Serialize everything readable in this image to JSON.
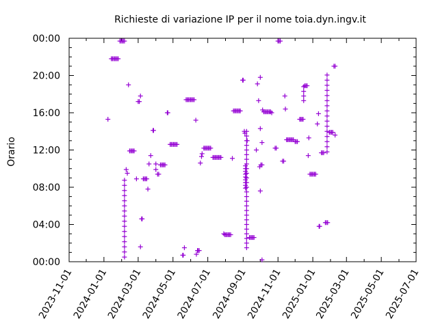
{
  "chart_data": {
    "type": "scatter",
    "title": "Richieste di variazione IP per il nome toia.dyn.ingv.it",
    "ylabel": "Orario",
    "xlabel": "",
    "x_ticks": [
      "2023-11-01",
      "2024-01-01",
      "2024-03-01",
      "2024-05-01",
      "2024-07-01",
      "2024-09-01",
      "2024-11-01",
      "2025-01-01",
      "2025-03-01",
      "2025-05-01",
      "2025-07-01"
    ],
    "y_ticks": [
      "00:00",
      "04:00",
      "08:00",
      "12:00",
      "16:00",
      "20:00",
      "00:00"
    ],
    "xlim": [
      "2023-11-01",
      "2025-07-01"
    ],
    "ylim": [
      0,
      24
    ],
    "grid": false,
    "marker": "plus",
    "color": "#9400d3",
    "series": [
      {
        "points": [
          [
            "2024-01-08",
            15.3
          ],
          [
            "2024-01-14",
            21.8
          ],
          [
            "2024-01-16",
            21.8
          ],
          [
            "2024-01-18",
            21.8
          ],
          [
            "2024-01-20",
            21.8
          ],
          [
            "2024-01-22",
            21.8
          ],
          [
            "2024-01-24",
            21.8
          ],
          [
            "2024-01-26",
            21.8
          ],
          [
            "2024-01-29",
            23.7
          ],
          [
            "2024-01-31",
            23.7
          ],
          [
            "2024-02-02",
            23.7
          ],
          [
            "2024-02-04",
            23.7
          ],
          [
            "2024-02-06",
            23.7
          ],
          [
            "2024-02-09",
            9.9
          ],
          [
            "2024-02-11",
            9.5
          ],
          [
            "2024-02-13",
            19.0
          ],
          [
            "2024-02-15",
            11.9
          ],
          [
            "2024-02-17",
            11.9
          ],
          [
            "2024-02-19",
            11.9
          ],
          [
            "2024-02-21",
            11.9
          ],
          [
            "2024-02-23",
            11.9
          ],
          [
            "2024-02-27",
            8.9
          ],
          [
            "2024-03-01",
            17.2
          ],
          [
            "2024-03-03",
            17.2
          ],
          [
            "2024-03-05",
            17.8
          ],
          [
            "2024-03-05",
            1.6
          ],
          [
            "2024-03-07",
            4.6
          ],
          [
            "2024-03-08",
            4.6
          ],
          [
            "2024-03-10",
            8.9
          ],
          [
            "2024-03-12",
            8.9
          ],
          [
            "2024-03-14",
            8.9
          ],
          [
            "2024-03-16",
            8.9
          ],
          [
            "2024-03-18",
            7.8
          ],
          [
            "2024-03-20",
            10.5
          ],
          [
            "2024-03-23",
            11.4
          ],
          [
            "2024-03-27",
            14.1
          ],
          [
            "2024-03-28",
            14.1
          ],
          [
            "2024-04-01",
            9.9
          ],
          [
            "2024-04-01",
            10.5
          ],
          [
            "2024-04-04",
            9.4
          ],
          [
            "2024-04-06",
            9.4
          ],
          [
            "2024-04-09",
            10.4
          ],
          [
            "2024-04-11",
            10.4
          ],
          [
            "2024-04-13",
            10.4
          ],
          [
            "2024-04-15",
            10.4
          ],
          [
            "2024-04-17",
            10.4
          ],
          [
            "2024-04-21",
            16.0
          ],
          [
            "2024-04-22",
            16.0
          ],
          [
            "2024-04-26",
            12.6
          ],
          [
            "2024-04-28",
            12.6
          ],
          [
            "2024-04-30",
            12.6
          ],
          [
            "2024-05-02",
            12.6
          ],
          [
            "2024-05-04",
            12.6
          ],
          [
            "2024-05-06",
            12.6
          ],
          [
            "2024-05-08",
            12.6
          ],
          [
            "2024-05-18",
            0.7
          ],
          [
            "2024-05-19",
            0.7
          ],
          [
            "2024-05-21",
            1.5
          ],
          [
            "2024-05-24",
            17.4
          ],
          [
            "2024-05-26",
            17.4
          ],
          [
            "2024-05-28",
            17.4
          ],
          [
            "2024-05-30",
            17.4
          ],
          [
            "2024-06-01",
            17.4
          ],
          [
            "2024-06-03",
            17.4
          ],
          [
            "2024-06-05",
            17.4
          ],
          [
            "2024-06-07",
            17.4
          ],
          [
            "2024-06-10",
            15.2
          ],
          [
            "2024-06-11",
            0.8
          ],
          [
            "2024-06-13",
            1.2
          ],
          [
            "2024-06-14",
            1.2
          ],
          [
            "2024-06-16",
            1.2
          ],
          [
            "2024-06-18",
            10.6
          ],
          [
            "2024-06-20",
            11.3
          ],
          [
            "2024-06-21",
            11.6
          ],
          [
            "2024-06-24",
            12.2
          ],
          [
            "2024-06-26",
            12.2
          ],
          [
            "2024-06-28",
            12.2
          ],
          [
            "2024-06-30",
            12.2
          ],
          [
            "2024-07-02",
            12.2
          ],
          [
            "2024-07-04",
            12.2
          ],
          [
            "2024-07-06",
            12.2
          ],
          [
            "2024-07-10",
            11.2
          ],
          [
            "2024-07-12",
            11.2
          ],
          [
            "2024-07-14",
            11.2
          ],
          [
            "2024-07-16",
            11.2
          ],
          [
            "2024-07-18",
            11.2
          ],
          [
            "2024-07-20",
            11.2
          ],
          [
            "2024-07-22",
            11.2
          ],
          [
            "2024-07-24",
            11.2
          ],
          [
            "2024-07-29",
            3.0
          ],
          [
            "2024-07-31",
            2.9
          ],
          [
            "2024-08-02",
            2.9
          ],
          [
            "2024-08-04",
            2.9
          ],
          [
            "2024-08-06",
            2.9
          ],
          [
            "2024-08-08",
            2.9
          ],
          [
            "2024-08-10",
            2.9
          ],
          [
            "2024-08-13",
            11.1
          ],
          [
            "2024-08-15",
            16.2
          ],
          [
            "2024-08-17",
            16.2
          ],
          [
            "2024-08-19",
            16.2
          ],
          [
            "2024-08-21",
            16.2
          ],
          [
            "2024-08-23",
            16.2
          ],
          [
            "2024-08-25",
            16.2
          ],
          [
            "2024-08-27",
            16.2
          ],
          [
            "2024-08-31",
            19.5
          ],
          [
            "2024-09-01",
            19.5
          ],
          [
            "2024-09-03",
            14.0
          ],
          [
            "2024-09-04",
            13.8
          ],
          [
            "2024-09-08",
            13.0
          ],
          [
            "2024-09-12",
            2.6
          ],
          [
            "2024-09-14",
            2.6
          ],
          [
            "2024-09-16",
            2.6
          ],
          [
            "2024-09-18",
            2.6
          ],
          [
            "2024-09-20",
            2.6
          ],
          [
            "2024-09-26",
            19.1
          ],
          [
            "2024-09-24",
            12.0
          ],
          [
            "2024-09-28",
            17.3
          ],
          [
            "2024-10-01",
            19.8
          ],
          [
            "2024-09-30",
            10.2
          ],
          [
            "2024-10-02",
            10.4
          ],
          [
            "2024-10-04",
            10.4
          ],
          [
            "2024-10-01",
            7.6
          ],
          [
            "2024-10-01",
            14.3
          ],
          [
            "2024-10-04",
            12.8
          ],
          [
            "2024-10-04",
            0.2
          ],
          [
            "2024-10-05",
            16.3
          ],
          [
            "2024-10-07",
            16.1
          ],
          [
            "2024-10-09",
            16.1
          ],
          [
            "2024-10-11",
            16.1
          ],
          [
            "2024-10-13",
            16.1
          ],
          [
            "2024-10-15",
            16.1
          ],
          [
            "2024-10-17",
            16.1
          ],
          [
            "2024-10-19",
            16.1
          ],
          [
            "2024-10-21",
            16.0
          ],
          [
            "2024-10-27",
            12.2
          ],
          [
            "2024-10-29",
            12.2
          ],
          [
            "2024-11-01",
            23.7
          ],
          [
            "2024-11-03",
            23.7
          ],
          [
            "2024-11-05",
            23.7
          ],
          [
            "2024-11-09",
            10.8
          ],
          [
            "2024-11-11",
            10.8
          ],
          [
            "2024-11-13",
            17.8
          ],
          [
            "2024-11-14",
            16.4
          ],
          [
            "2024-11-16",
            13.1
          ],
          [
            "2024-11-18",
            13.1
          ],
          [
            "2024-11-20",
            13.1
          ],
          [
            "2024-11-22",
            13.1
          ],
          [
            "2024-11-24",
            13.1
          ],
          [
            "2024-11-26",
            13.1
          ],
          [
            "2024-11-28",
            13.1
          ],
          [
            "2024-12-01",
            12.9
          ],
          [
            "2024-12-03",
            12.9
          ],
          [
            "2024-12-05",
            12.9
          ],
          [
            "2024-12-09",
            15.3
          ],
          [
            "2024-12-11",
            15.3
          ],
          [
            "2024-12-13",
            15.3
          ],
          [
            "2024-12-15",
            15.3
          ],
          [
            "2024-12-18",
            18.9
          ],
          [
            "2024-12-20",
            18.9
          ],
          [
            "2024-12-22",
            18.9
          ],
          [
            "2024-12-24",
            11.4
          ],
          [
            "2024-12-25",
            13.3
          ],
          [
            "2024-12-27",
            9.4
          ],
          [
            "2024-12-29",
            9.4
          ],
          [
            "2024-12-31",
            9.4
          ],
          [
            "2025-01-02",
            9.4
          ],
          [
            "2025-01-04",
            9.4
          ],
          [
            "2025-01-06",
            9.4
          ],
          [
            "2025-01-09",
            14.8
          ],
          [
            "2025-01-11",
            15.9
          ],
          [
            "2025-01-12",
            3.8
          ],
          [
            "2025-01-13",
            3.8
          ],
          [
            "2025-01-16",
            11.7
          ],
          [
            "2025-01-18",
            11.7
          ],
          [
            "2025-01-20",
            11.7
          ],
          [
            "2025-01-23",
            4.2
          ],
          [
            "2025-01-25",
            4.2
          ],
          [
            "2025-01-27",
            4.2
          ],
          [
            "2025-01-30",
            13.9
          ],
          [
            "2025-02-01",
            13.9
          ],
          [
            "2025-02-03",
            13.9
          ],
          [
            "2025-02-05",
            13.9
          ],
          [
            "2025-02-09",
            13.6
          ],
          [
            "2025-02-07",
            21.0
          ],
          [
            "2025-02-09",
            21.0
          ]
        ]
      },
      {
        "vertical_runs": [
          {
            "x": "2024-02-06",
            "y_from": 0.5,
            "y_to": 8.9,
            "step": 0.55
          },
          {
            "x": "2024-09-05",
            "y_from": 7.9,
            "y_to": 10.4,
            "step": 0.3
          },
          {
            "x": "2024-09-07",
            "y_from": 1.5,
            "y_to": 14.0,
            "step": 0.5
          },
          {
            "x": "2024-12-16",
            "y_from": 17.3,
            "y_to": 18.8,
            "step": 0.5
          },
          {
            "x": "2025-01-26",
            "y_from": 11.8,
            "y_to": 20.4,
            "step": 0.55
          }
        ]
      }
    ]
  }
}
